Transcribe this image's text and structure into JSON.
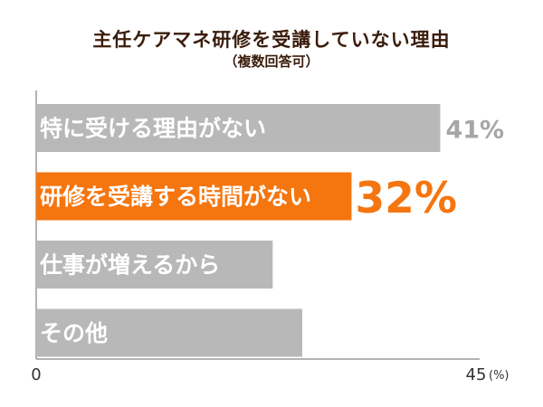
{
  "title": "主任ケアマネ研修を受講していない理由",
  "subtitle": "（複数回答可）",
  "chart_data": {
    "type": "bar",
    "orientation": "horizontal",
    "title": "主任ケアマネ研修を受講していない理由",
    "subtitle": "（複数回答可）",
    "categories": [
      "特に受ける理由がない",
      "研修を受講する時間がない",
      "仕事が増えるから",
      "その他"
    ],
    "values": [
      41,
      32,
      24,
      27
    ],
    "value_labels": [
      "41%",
      "32%",
      "",
      ""
    ],
    "xlim": [
      0,
      45
    ],
    "x_tick_labels": [
      "0",
      "45"
    ],
    "x_unit": "(%)",
    "highlight_index": 1,
    "grid": false,
    "colors": {
      "bar": "#b8b8b8",
      "highlight": "#f5750f",
      "label_text": "#ffffff",
      "value_label": "#a6a6a6",
      "highlight_value_label": "#f5750f",
      "axis": "#9a9a9a",
      "title": "#3b1c0c"
    }
  }
}
